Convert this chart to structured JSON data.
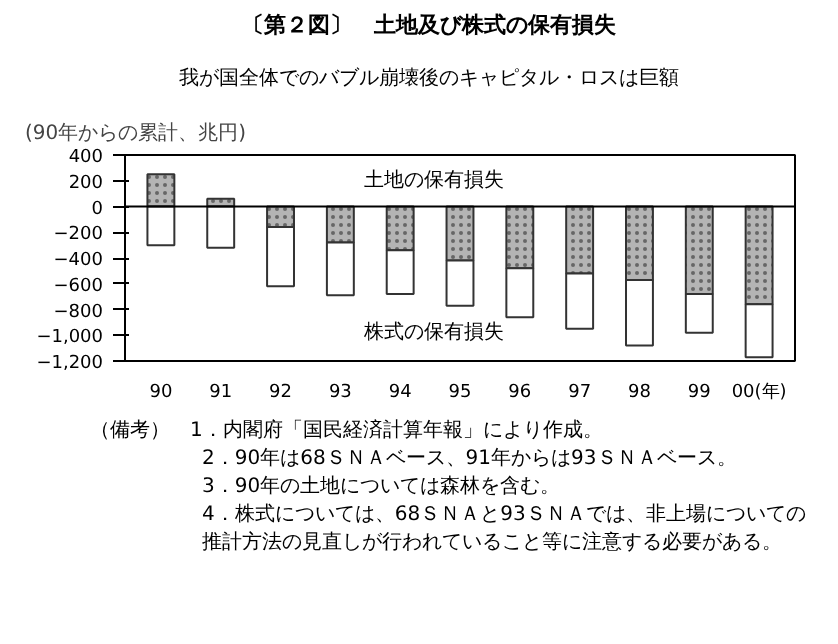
{
  "chart_data": {
    "type": "bar",
    "stacked": true,
    "title": "〔第２図〕　土地及び株式の保有損失",
    "subtitle": "我が国全体でのバブル崩壊後のキャピタル・ロスは巨額",
    "ylabel": "(90年からの累計、兆円)",
    "categories": [
      "90",
      "91",
      "92",
      "93",
      "94",
      "95",
      "96",
      "97",
      "98",
      "99",
      "00(年)"
    ],
    "series": [
      {
        "name": "土地の保有損失",
        "color": "#b4b4b4",
        "values": [
          250,
          60,
          -160,
          -280,
          -340,
          -420,
          -480,
          -520,
          -570,
          -680,
          -760
        ]
      },
      {
        "name": "株式の保有損失",
        "color": "#ffffff",
        "values": [
          -300,
          -320,
          -460,
          -410,
          -340,
          -350,
          -380,
          -430,
          -510,
          -300,
          -410
        ]
      }
    ],
    "ylim": [
      -1200,
      400
    ],
    "yticks": [
      {
        "value": -1200,
        "label": "−1,200"
      },
      {
        "value": -1000,
        "label": "−1,000"
      },
      {
        "value": -800,
        "label": "−800"
      },
      {
        "value": -600,
        "label": "−600"
      },
      {
        "value": -400,
        "label": "−400"
      },
      {
        "value": -200,
        "label": "−200"
      },
      0,
      200,
      400
    ],
    "ref_lines": [
      {
        "axis": "y",
        "value": 0
      }
    ],
    "annotations": [
      "（備考）　1．内閣府「国民経済計算年報」により作成。",
      "2．90年は68ＳＮＡベース、91年からは93ＳＮＡベース。",
      "3．90年の土地については森林を含む。",
      "4．株式については、68ＳＮＡと93ＳＮＡでは、非上場についての推計方法の見直しが行われていること等に注意する必要がある。"
    ]
  }
}
